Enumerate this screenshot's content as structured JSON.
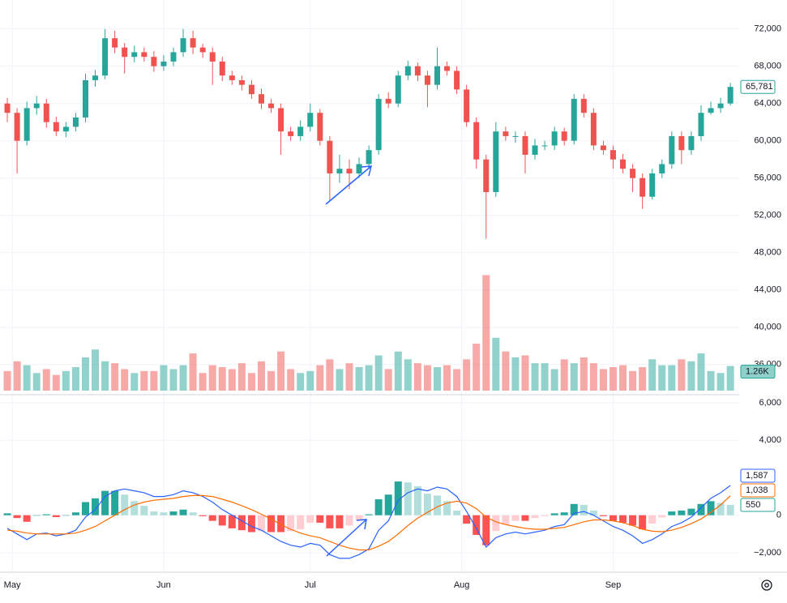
{
  "chart_data": [
    {
      "type": "candlestick",
      "open": [
        64000,
        63000,
        60000,
        63500,
        64000,
        62000,
        61000,
        61500,
        62500,
        66500,
        67000,
        71000,
        70000,
        69000,
        69500,
        69000,
        68000,
        68500,
        69500,
        71000,
        70000,
        69500,
        68500,
        67000,
        66500,
        66000,
        65000,
        64000,
        63500,
        61000,
        60500,
        61500,
        63000,
        60000,
        56500,
        57000,
        56500,
        57500,
        59000,
        64500,
        64000,
        67000,
        68000,
        67000,
        66000,
        68000,
        67500,
        65500,
        62000,
        58000,
        54500,
        61000,
        60500,
        60500,
        58500,
        59500,
        59500,
        61000,
        60000,
        64500,
        63000,
        59500,
        59000,
        58000,
        57000,
        56000,
        54000,
        56500,
        57500,
        60500,
        59000,
        60500,
        63000,
        63500,
        64000
      ],
      "high": [
        64600,
        63500,
        64200,
        64800,
        64500,
        62600,
        62000,
        63000,
        67200,
        67600,
        72000,
        71800,
        70500,
        70200,
        70000,
        69600,
        69200,
        70000,
        72000,
        71800,
        70400,
        70000,
        69000,
        67500,
        67000,
        66500,
        65600,
        64500,
        64000,
        61500,
        62200,
        64000,
        63400,
        60500,
        58500,
        58000,
        58200,
        59500,
        65000,
        65200,
        67500,
        68600,
        68400,
        67500,
        70000,
        68500,
        68000,
        66000,
        62500,
        58500,
        62000,
        61500,
        61000,
        61000,
        60200,
        60000,
        61500,
        61400,
        65000,
        65000,
        63500,
        60000,
        59500,
        58600,
        57500,
        56500,
        57000,
        58000,
        61000,
        61000,
        61000,
        63800,
        64200,
        64600,
        66200
      ],
      "low": [
        62000,
        56500,
        59500,
        62800,
        61400,
        60500,
        60400,
        61000,
        62000,
        65800,
        66600,
        69400,
        67200,
        68400,
        68500,
        67400,
        67500,
        68000,
        69000,
        69300,
        68900,
        66000,
        66400,
        66000,
        65400,
        64500,
        63400,
        63000,
        58500,
        60000,
        60000,
        61000,
        59500,
        53500,
        55500,
        54800,
        56000,
        57000,
        58500,
        63500,
        63600,
        66500,
        66400,
        63600,
        65500,
        67000,
        65000,
        61500,
        57000,
        49500,
        54000,
        60000,
        59800,
        56500,
        58000,
        59000,
        59000,
        59500,
        59600,
        62500,
        59000,
        58500,
        57000,
        56500,
        54500,
        52700,
        53700,
        56000,
        57000,
        57500,
        58500,
        60000,
        62800,
        63000,
        63800
      ],
      "close": [
        63000,
        60000,
        63500,
        64000,
        62000,
        61000,
        61500,
        62500,
        66500,
        67000,
        71000,
        70000,
        69000,
        69500,
        69000,
        68000,
        68500,
        69500,
        71000,
        70000,
        69500,
        68500,
        67000,
        66500,
        66000,
        65000,
        64000,
        63500,
        61000,
        60500,
        61500,
        63000,
        60000,
        56500,
        57000,
        56500,
        57500,
        59000,
        64500,
        64000,
        67000,
        68000,
        67000,
        66000,
        68000,
        67500,
        65500,
        62000,
        58000,
        54500,
        61000,
        60500,
        60500,
        58500,
        59500,
        59500,
        61000,
        60000,
        64500,
        63000,
        59500,
        59000,
        58000,
        57000,
        56000,
        54000,
        56500,
        57500,
        60500,
        59000,
        60500,
        63000,
        63500,
        64000,
        65781
      ],
      "value_labels": {
        "74": "65,781"
      },
      "up_color": "#26a69a",
      "down_color": "#ef5350",
      "ylim": [
        33200,
        75100
      ],
      "yticks": [
        {
          "value": 36000,
          "label": "36,000"
        },
        {
          "value": 40000,
          "label": "40,000"
        },
        {
          "value": 44000,
          "label": "44,000"
        },
        {
          "value": 48000,
          "label": "48,000"
        },
        {
          "value": 52000,
          "label": "52,000"
        },
        {
          "value": 56000,
          "label": "56,000"
        },
        {
          "value": 60000,
          "label": "60,000"
        },
        {
          "value": 64000,
          "label": "64,000"
        },
        {
          "value": 68000,
          "label": "68,000"
        },
        {
          "value": 72000,
          "label": "72,000"
        }
      ],
      "grid": true
    },
    {
      "type": "bar",
      "values": [
        1000,
        1500,
        1300,
        900,
        1100,
        800,
        1000,
        1200,
        1700,
        2100,
        1500,
        1400,
        1100,
        900,
        1000,
        1000,
        1300,
        1100,
        1300,
        1900,
        900,
        1300,
        1200,
        1100,
        1400,
        900,
        1500,
        1000,
        2000,
        1100,
        900,
        1000,
        1300,
        1600,
        1100,
        1400,
        1200,
        1300,
        1800,
        1100,
        2000,
        1600,
        1400,
        1300,
        1200,
        1300,
        1100,
        1600,
        2400,
        5900,
        2700,
        2000,
        1700,
        1800,
        1400,
        1400,
        1100,
        1600,
        1400,
        1700,
        1400,
        1100,
        1200,
        1300,
        1000,
        1200,
        1600,
        1300,
        1300,
        1600,
        1500,
        1900,
        1000,
        900,
        1260
      ],
      "value_labels": {
        "74": "1.26K"
      },
      "ylim": [
        0,
        6000
      ]
    },
    {
      "type": "macd",
      "series": [
        {
          "color": "#2962ff",
          "values": [
            -700,
            -1000,
            -1300,
            -1000,
            -950,
            -1100,
            -1000,
            -800,
            -100,
            300,
            1000,
            1300,
            1400,
            1300,
            1200,
            1000,
            1000,
            1100,
            1300,
            1200,
            1000,
            700,
            300,
            0,
            -300,
            -600,
            -800,
            -1100,
            -1400,
            -1600,
            -1700,
            -1500,
            -1600,
            -2100,
            -2300,
            -2300,
            -2100,
            -1800,
            -800,
            -300,
            800,
            1200,
            1400,
            1300,
            1500,
            1400,
            1000,
            200,
            -700,
            -1700,
            -1200,
            -1000,
            -900,
            -1000,
            -900,
            -800,
            -600,
            -500,
            100,
            200,
            0,
            -300,
            -600,
            -800,
            -1100,
            -1500,
            -1300,
            -1000,
            -600,
            -400,
            -100,
            400,
            900,
            1200,
            1587
          ],
          "value_labels": {
            "74": "1,587"
          }
        },
        {
          "color": "#ff6d00",
          "values": [
            -800,
            -850,
            -950,
            -1000,
            -1000,
            -1000,
            -1000,
            -950,
            -800,
            -600,
            -300,
            0,
            300,
            550,
            700,
            800,
            850,
            900,
            1000,
            1050,
            1050,
            1000,
            850,
            700,
            500,
            300,
            50,
            -200,
            -500,
            -750,
            -950,
            -1100,
            -1200,
            -1400,
            -1600,
            -1750,
            -1850,
            -1850,
            -1650,
            -1400,
            -1000,
            -550,
            -150,
            150,
            450,
            650,
            750,
            650,
            350,
            -100,
            -350,
            -500,
            -600,
            -700,
            -750,
            -750,
            -700,
            -650,
            -500,
            -350,
            -250,
            -250,
            -300,
            -400,
            -550,
            -750,
            -850,
            -880,
            -800,
            -650,
            -450,
            -200,
            150,
            550,
            1038
          ],
          "value_labels": {
            "74": "1,038"
          }
        }
      ],
      "histogram": {
        "values": [
          100,
          -150,
          -350,
          0,
          50,
          -100,
          0,
          150,
          700,
          900,
          1300,
          1300,
          1100,
          750,
          500,
          200,
          150,
          200,
          300,
          150,
          -50,
          -300,
          -550,
          -700,
          -800,
          -900,
          -850,
          -900,
          -900,
          -850,
          -750,
          -400,
          -400,
          -700,
          -700,
          -550,
          -250,
          50,
          850,
          1100,
          1800,
          1750,
          1550,
          1150,
          1050,
          750,
          250,
          -450,
          -1050,
          -1600,
          -850,
          -500,
          -300,
          -300,
          -150,
          -50,
          100,
          150,
          600,
          550,
          250,
          -50,
          -300,
          -400,
          -550,
          -750,
          -450,
          -120,
          200,
          250,
          350,
          600,
          750,
          650,
          550
        ],
        "up_colors": [
          "#26a69a",
          "#b2dfdb"
        ],
        "down_colors": [
          "#ff5252",
          "#ffcdd2"
        ]
      },
      "ylim": [
        -3040,
        6430
      ],
      "yticks": [
        {
          "value": -2000,
          "label": "−2,000"
        },
        0,
        {
          "value": 4000,
          "label": "4,000"
        },
        {
          "value": 6000,
          "label": "6,000"
        }
      ],
      "xlim": [
        -0.75,
        74.9
      ],
      "xticks": [
        {
          "value": 0.5,
          "label": "May"
        },
        {
          "value": 16,
          "label": "Jun"
        },
        {
          "value": 31,
          "label": "Jul"
        },
        {
          "value": 46.5,
          "label": "Aug"
        },
        {
          "value": 62,
          "label": "Sep"
        }
      ],
      "grid": true
    }
  ]
}
